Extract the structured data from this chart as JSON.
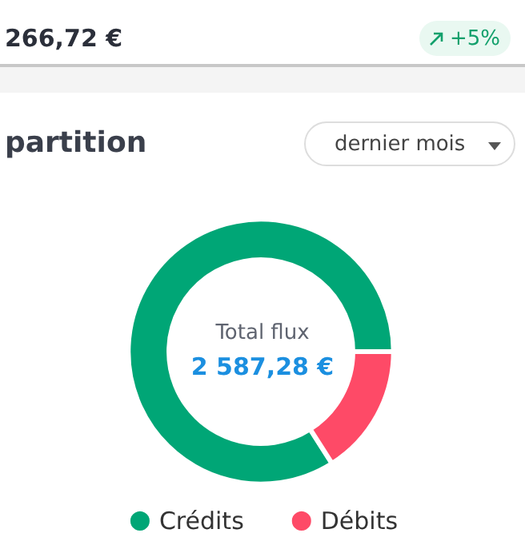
{
  "chart_data": {
    "type": "donut",
    "title": "partition",
    "categories": [
      "Crédits",
      "Débits"
    ],
    "values": [
      84,
      16
    ],
    "colors": [
      "#00a676",
      "#fe4a67"
    ],
    "legend": "bottom",
    "annotations": [
      "266,72 €",
      "+5%",
      "dernier mois",
      "Total flux",
      "2 587,28 €"
    ]
  }
}
